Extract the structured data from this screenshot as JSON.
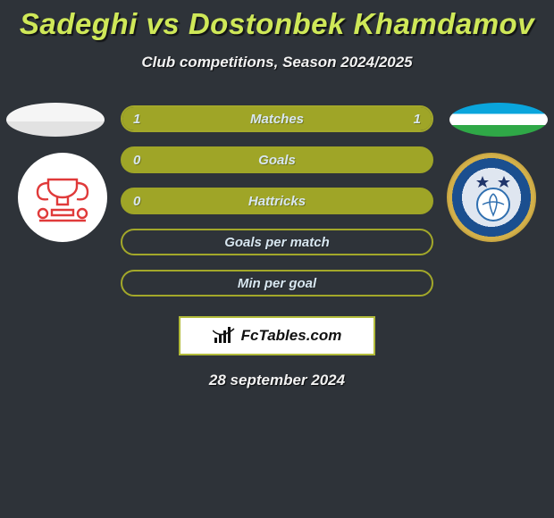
{
  "title": "Sadeghi vs Dostonbek Khamdamov",
  "subtitle": "Club competitions, Season 2024/2025",
  "colors": {
    "background": "#2e3339",
    "title": "#cfe858",
    "text": "#f2f2f2",
    "row_fill": "#9fa527",
    "row_border": "#a3a82a",
    "row_text": "#d7e6f0",
    "bar_left_color": "#9fa527",
    "bar_right_color": "#9fa527"
  },
  "fonts": {
    "title_size": 33,
    "subtitle_size": 17,
    "row_label_size": 15
  },
  "rows": [
    {
      "label": "Matches",
      "left": "1",
      "right": "1",
      "highlight": true,
      "left_pct": 50,
      "right_pct": 50
    },
    {
      "label": "Goals",
      "left": "0",
      "right": "",
      "highlight": false,
      "left_pct": 0,
      "right_pct": 0
    },
    {
      "label": "Hattricks",
      "left": "0",
      "right": "",
      "highlight": false,
      "left_pct": 0,
      "right_pct": 0
    },
    {
      "label": "Goals per match",
      "left": "",
      "right": "",
      "highlight": true,
      "left_pct": 0,
      "right_pct": 0
    },
    {
      "label": "Min per goal",
      "left": "",
      "right": "",
      "highlight": true,
      "left_pct": 0,
      "right_pct": 0
    }
  ],
  "brand": "FcTables.com",
  "date": "28 september 2024",
  "left_logo_alt": "team-crest-left",
  "right_logo_alt": "pakhtakor-crest"
}
